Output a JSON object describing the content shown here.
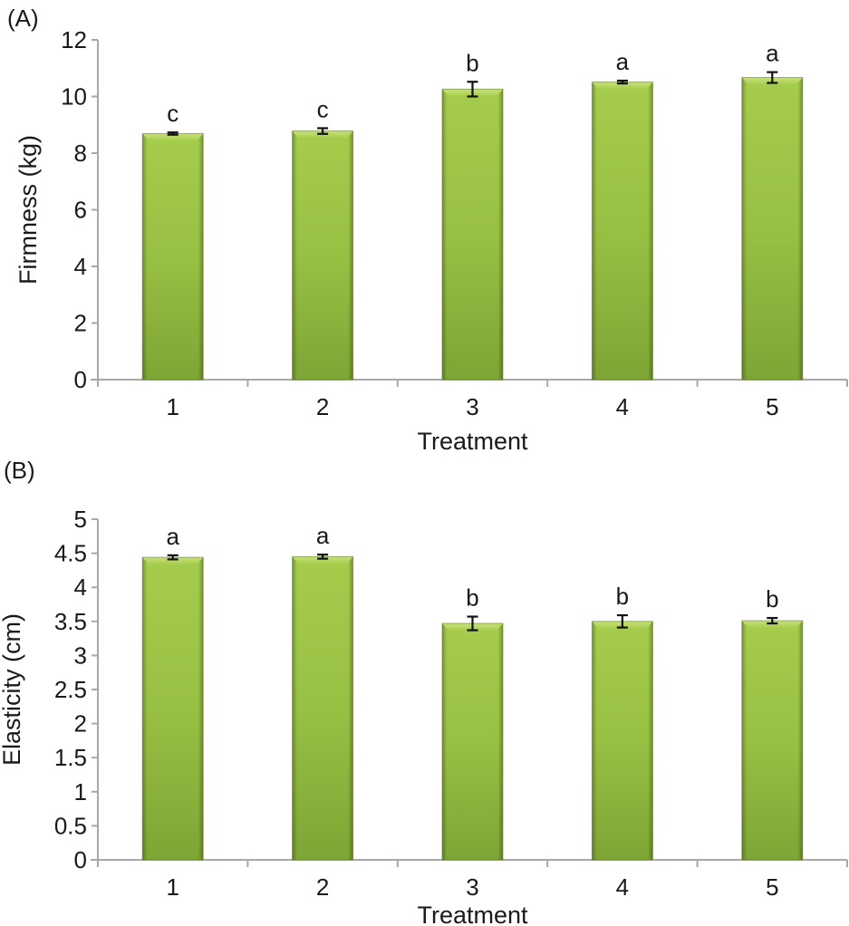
{
  "chart_data": [
    {
      "type": "bar",
      "panel_label": "(A)",
      "title": "",
      "xlabel": "Treatment",
      "ylabel": "Firmness (kg)",
      "categories": [
        "1",
        "2",
        "3",
        "4",
        "5"
      ],
      "values": [
        8.69,
        8.78,
        10.26,
        10.51,
        10.67
      ],
      "errors": [
        0.04,
        0.1,
        0.26,
        0.05,
        0.19
      ],
      "significance_letters": [
        "c",
        "c",
        "b",
        "a",
        "a"
      ],
      "ylim": [
        0,
        12
      ],
      "yticks": [
        0,
        2,
        4,
        6,
        8,
        10,
        12
      ],
      "ytick_labels": [
        "0",
        "2",
        "4",
        "6",
        "8",
        "10",
        "12"
      ],
      "grid": false,
      "legend": "none",
      "bar_color": "#8db43a"
    },
    {
      "type": "bar",
      "panel_label": "(B)",
      "title": "",
      "xlabel": "Treatment",
      "ylabel": "Elasticity (cm)",
      "categories": [
        "1",
        "2",
        "3",
        "4",
        "5"
      ],
      "values": [
        4.44,
        4.45,
        3.47,
        3.5,
        3.51
      ],
      "errors": [
        0.03,
        0.03,
        0.1,
        0.09,
        0.04
      ],
      "significance_letters": [
        "a",
        "a",
        "b",
        "b",
        "b"
      ],
      "ylim": [
        0,
        5
      ],
      "yticks": [
        0,
        0.5,
        1,
        1.5,
        2,
        2.5,
        3,
        3.5,
        4,
        4.5,
        5
      ],
      "ytick_labels": [
        "0",
        "0.5",
        "1",
        "1.5",
        "2",
        "2.5",
        "3",
        "3.5",
        "4",
        "4.5",
        "5"
      ],
      "grid": false,
      "legend": "none",
      "bar_color": "#8db43a"
    }
  ]
}
